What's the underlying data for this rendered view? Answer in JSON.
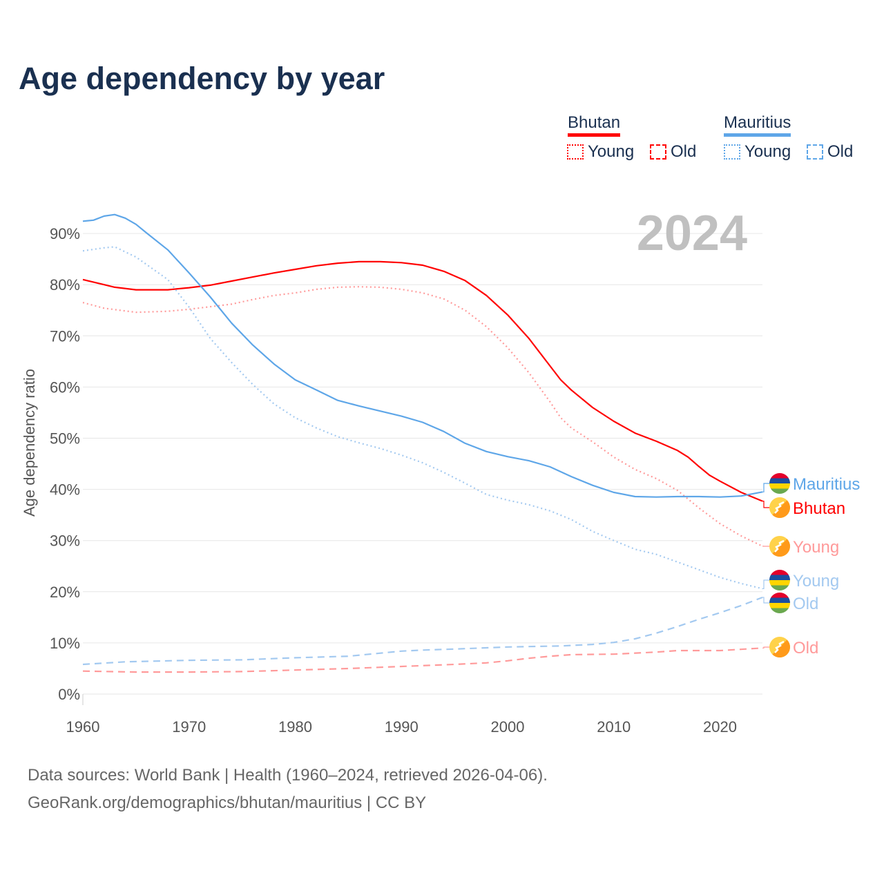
{
  "title": "Age dependency by year",
  "legend": {
    "groups": [
      {
        "country": "Bhutan",
        "color": "#ff0000",
        "light": "#ff9a9a",
        "items": [
          "Young",
          "Old"
        ]
      },
      {
        "country": "Mauritius",
        "color": "#5ea6e8",
        "light": "#a3c9f0",
        "items": [
          "Young",
          "Old"
        ]
      }
    ]
  },
  "year_label": "2024",
  "footer": {
    "line1": "Data sources: World Bank | Health (1960–2024, retrieved 2026-04-06).",
    "line2": "GeoRank.org/demographics/bhutan/mauritius | CC BY"
  },
  "chart_data": {
    "type": "line",
    "title": "Age dependency by year",
    "xlabel": "",
    "ylabel": "Age dependency ratio",
    "xlim": [
      1960,
      2024
    ],
    "ylim": [
      0,
      90
    ],
    "x_ticks": [
      "1960",
      "1970",
      "1980",
      "1990",
      "2000",
      "2010",
      "2020"
    ],
    "y_ticks": [
      "0%",
      "10%",
      "20%",
      "30%",
      "40%",
      "50%",
      "60%",
      "70%",
      "80%",
      "90%"
    ],
    "grid": true,
    "series": [
      {
        "name": "Bhutan",
        "end_label": "Bhutan",
        "color": "#ff0000",
        "style": "solid",
        "flag": "bhutan",
        "x": [
          1960,
          1962,
          1963,
          1965,
          1968,
          1970,
          1972,
          1974,
          1976,
          1978,
          1980,
          1982,
          1984,
          1986,
          1988,
          1990,
          1992,
          1994,
          1996,
          1998,
          2000,
          2002,
          2004,
          2005,
          2006,
          2008,
          2010,
          2012,
          2014,
          2016,
          2017,
          2018,
          2019,
          2020,
          2022,
          2024
        ],
        "y": [
          81,
          80,
          79.5,
          79,
          79,
          79.4,
          79.9,
          80.7,
          81.5,
          82.3,
          83,
          83.7,
          84.2,
          84.5,
          84.5,
          84.3,
          83.8,
          82.6,
          80.8,
          77.9,
          74.1,
          69.5,
          64.1,
          61.4,
          59.4,
          56,
          53.3,
          51,
          49.4,
          47.6,
          46.3,
          44.5,
          42.8,
          41.6,
          39.4,
          37.7
        ]
      },
      {
        "name": "Bhutan Young",
        "end_label": "Young",
        "color": "#ff9a9a",
        "style": "dotted",
        "flag": "bhutan",
        "x": [
          1960,
          1962,
          1965,
          1968,
          1970,
          1972,
          1974,
          1976,
          1978,
          1980,
          1982,
          1984,
          1986,
          1988,
          1990,
          1992,
          1994,
          1996,
          1998,
          2000,
          2002,
          2004,
          2005,
          2006,
          2008,
          2010,
          2012,
          2014,
          2016,
          2018,
          2020,
          2022,
          2024
        ],
        "y": [
          76.5,
          75.4,
          74.6,
          74.8,
          75.2,
          75.7,
          76.2,
          77.1,
          77.9,
          78.4,
          79.1,
          79.5,
          79.6,
          79.5,
          79.1,
          78.4,
          77.2,
          75,
          71.8,
          67.7,
          62.8,
          57.1,
          54,
          52,
          49.3,
          46.3,
          43.9,
          42.1,
          39.8,
          36.4,
          33.3,
          30.9,
          28.9
        ]
      },
      {
        "name": "Bhutan Old",
        "end_label": "Old",
        "color": "#ff9a9a",
        "style": "dashed",
        "flag": "bhutan",
        "x": [
          1960,
          1965,
          1970,
          1975,
          1980,
          1985,
          1990,
          1995,
          1998,
          2000,
          2002,
          2004,
          2006,
          2010,
          2014,
          2016,
          2020,
          2024
        ],
        "y": [
          4.5,
          4.3,
          4.3,
          4.4,
          4.7,
          5,
          5.4,
          5.8,
          6.1,
          6.5,
          7,
          7.4,
          7.7,
          7.8,
          8.2,
          8.5,
          8.5,
          9
        ]
      },
      {
        "name": "Mauritius",
        "end_label": "Mauritius",
        "color": "#5ea6e8",
        "style": "solid",
        "flag": "mauritius",
        "x": [
          1960,
          1961,
          1962,
          1963,
          1964,
          1965,
          1966,
          1968,
          1970,
          1972,
          1974,
          1976,
          1978,
          1980,
          1982,
          1984,
          1986,
          1988,
          1990,
          1992,
          1994,
          1996,
          1998,
          2000,
          2002,
          2004,
          2006,
          2008,
          2010,
          2012,
          2014,
          2016,
          2018,
          2020,
          2022,
          2024
        ],
        "y": [
          92.4,
          92.6,
          93.4,
          93.7,
          93,
          91.8,
          90.1,
          86.8,
          82.3,
          77.6,
          72.5,
          68.2,
          64.5,
          61.4,
          59.4,
          57.4,
          56.3,
          55.3,
          54.3,
          53.1,
          51.3,
          49,
          47.4,
          46.4,
          45.6,
          44.4,
          42.5,
          40.8,
          39.4,
          38.6,
          38.5,
          38.6,
          38.6,
          38.5,
          38.7,
          39.5
        ]
      },
      {
        "name": "Mauritius Young",
        "end_label": "Young",
        "color": "#a3c9f0",
        "style": "dotted",
        "flag": "mauritius",
        "x": [
          1960,
          1962,
          1963,
          1965,
          1968,
          1970,
          1972,
          1974,
          1976,
          1978,
          1980,
          1982,
          1984,
          1986,
          1988,
          1990,
          1992,
          1994,
          1996,
          1998,
          2000,
          2002,
          2004,
          2006,
          2008,
          2010,
          2012,
          2014,
          2016,
          2018,
          2020,
          2022,
          2024
        ],
        "y": [
          86.6,
          87.2,
          87.4,
          85.4,
          81,
          75.6,
          69.5,
          64.8,
          60.5,
          56.7,
          54,
          52,
          50.3,
          49.1,
          48,
          46.7,
          45.2,
          43.3,
          41.2,
          39,
          37.9,
          37,
          35.8,
          34.1,
          31.8,
          30,
          28.3,
          27.3,
          25.8,
          24.3,
          22.8,
          21.6,
          20.6
        ]
      },
      {
        "name": "Mauritius Old",
        "end_label": "Old",
        "color": "#a3c9f0",
        "style": "dashed",
        "flag": "mauritius",
        "x": [
          1960,
          1964,
          1970,
          1975,
          1980,
          1985,
          1990,
          1992,
          1995,
          2000,
          2005,
          2008,
          2010,
          2012,
          2014,
          2016,
          2018,
          2020,
          2022,
          2024
        ],
        "y": [
          5.8,
          6.3,
          6.6,
          6.7,
          7.1,
          7.4,
          8.4,
          8.6,
          8.8,
          9.2,
          9.4,
          9.7,
          10.1,
          10.8,
          11.9,
          13.2,
          14.6,
          15.9,
          17.3,
          18.9
        ]
      }
    ]
  }
}
